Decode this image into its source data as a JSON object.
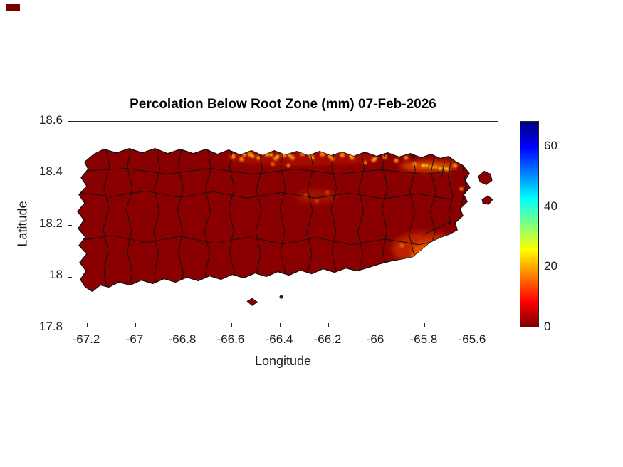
{
  "figure": {
    "background": "#ffffff",
    "artifact_color": "#7a0000"
  },
  "chart_data": {
    "type": "heatmap",
    "title": "Percolation Below Root Zone (mm) 07-Feb-2026",
    "xlabel": "Longitude",
    "ylabel": "Latitude",
    "x_tick_labels": [
      "-67.2",
      "-67",
      "-66.8",
      "-66.6",
      "-66.4",
      "-66.2",
      "-66",
      "-65.8",
      "-65.6"
    ],
    "y_tick_labels": [
      "18.6",
      "18.4",
      "18.2",
      "18",
      "17.8"
    ],
    "xlim": [
      -67.27,
      -65.49
    ],
    "ylim": [
      17.8,
      18.6
    ],
    "grid": false,
    "region": "Puerto Rico with municipal boundaries",
    "variable": "Percolation below root zone",
    "units": "mm",
    "date": "07-Feb-2026",
    "dominant_value_mm": 0,
    "colorbar": {
      "orientation": "vertical",
      "tick_labels": [
        "0",
        "20",
        "40",
        "60"
      ],
      "ticks": [
        0,
        20,
        40,
        60
      ],
      "range": [
        0,
        68
      ],
      "colormap": "jet (0 = dark red at bottom, max = dark blue at top)",
      "stops": [
        {
          "pos": 0,
          "color": "#7f0000"
        },
        {
          "pos": 0.125,
          "color": "#ff0000"
        },
        {
          "pos": 0.375,
          "color": "#ffff00"
        },
        {
          "pos": 0.625,
          "color": "#00ffff"
        },
        {
          "pos": 0.875,
          "color": "#0000ff"
        },
        {
          "pos": 1,
          "color": "#00007f"
        }
      ]
    },
    "map": {
      "base_color": "#8a0000",
      "boundary_color": "#101010",
      "hotspot_regions": [
        {
          "area": "north coast (Arecibo–Dorado)",
          "approx_value_mm": "10–25",
          "colors": [
            "#ff7a00",
            "#ffd700"
          ]
        },
        {
          "area": "northeast coast (Fajardo)",
          "approx_value_mm": "15–30",
          "colors": [
            "#ff8c00",
            "#b8ff30"
          ]
        },
        {
          "area": "southeast (Humacao–Yabucoa)",
          "approx_value_mm": "5–20",
          "colors": [
            "#e03000",
            "#ff9000",
            "#ffe000"
          ]
        }
      ]
    }
  }
}
